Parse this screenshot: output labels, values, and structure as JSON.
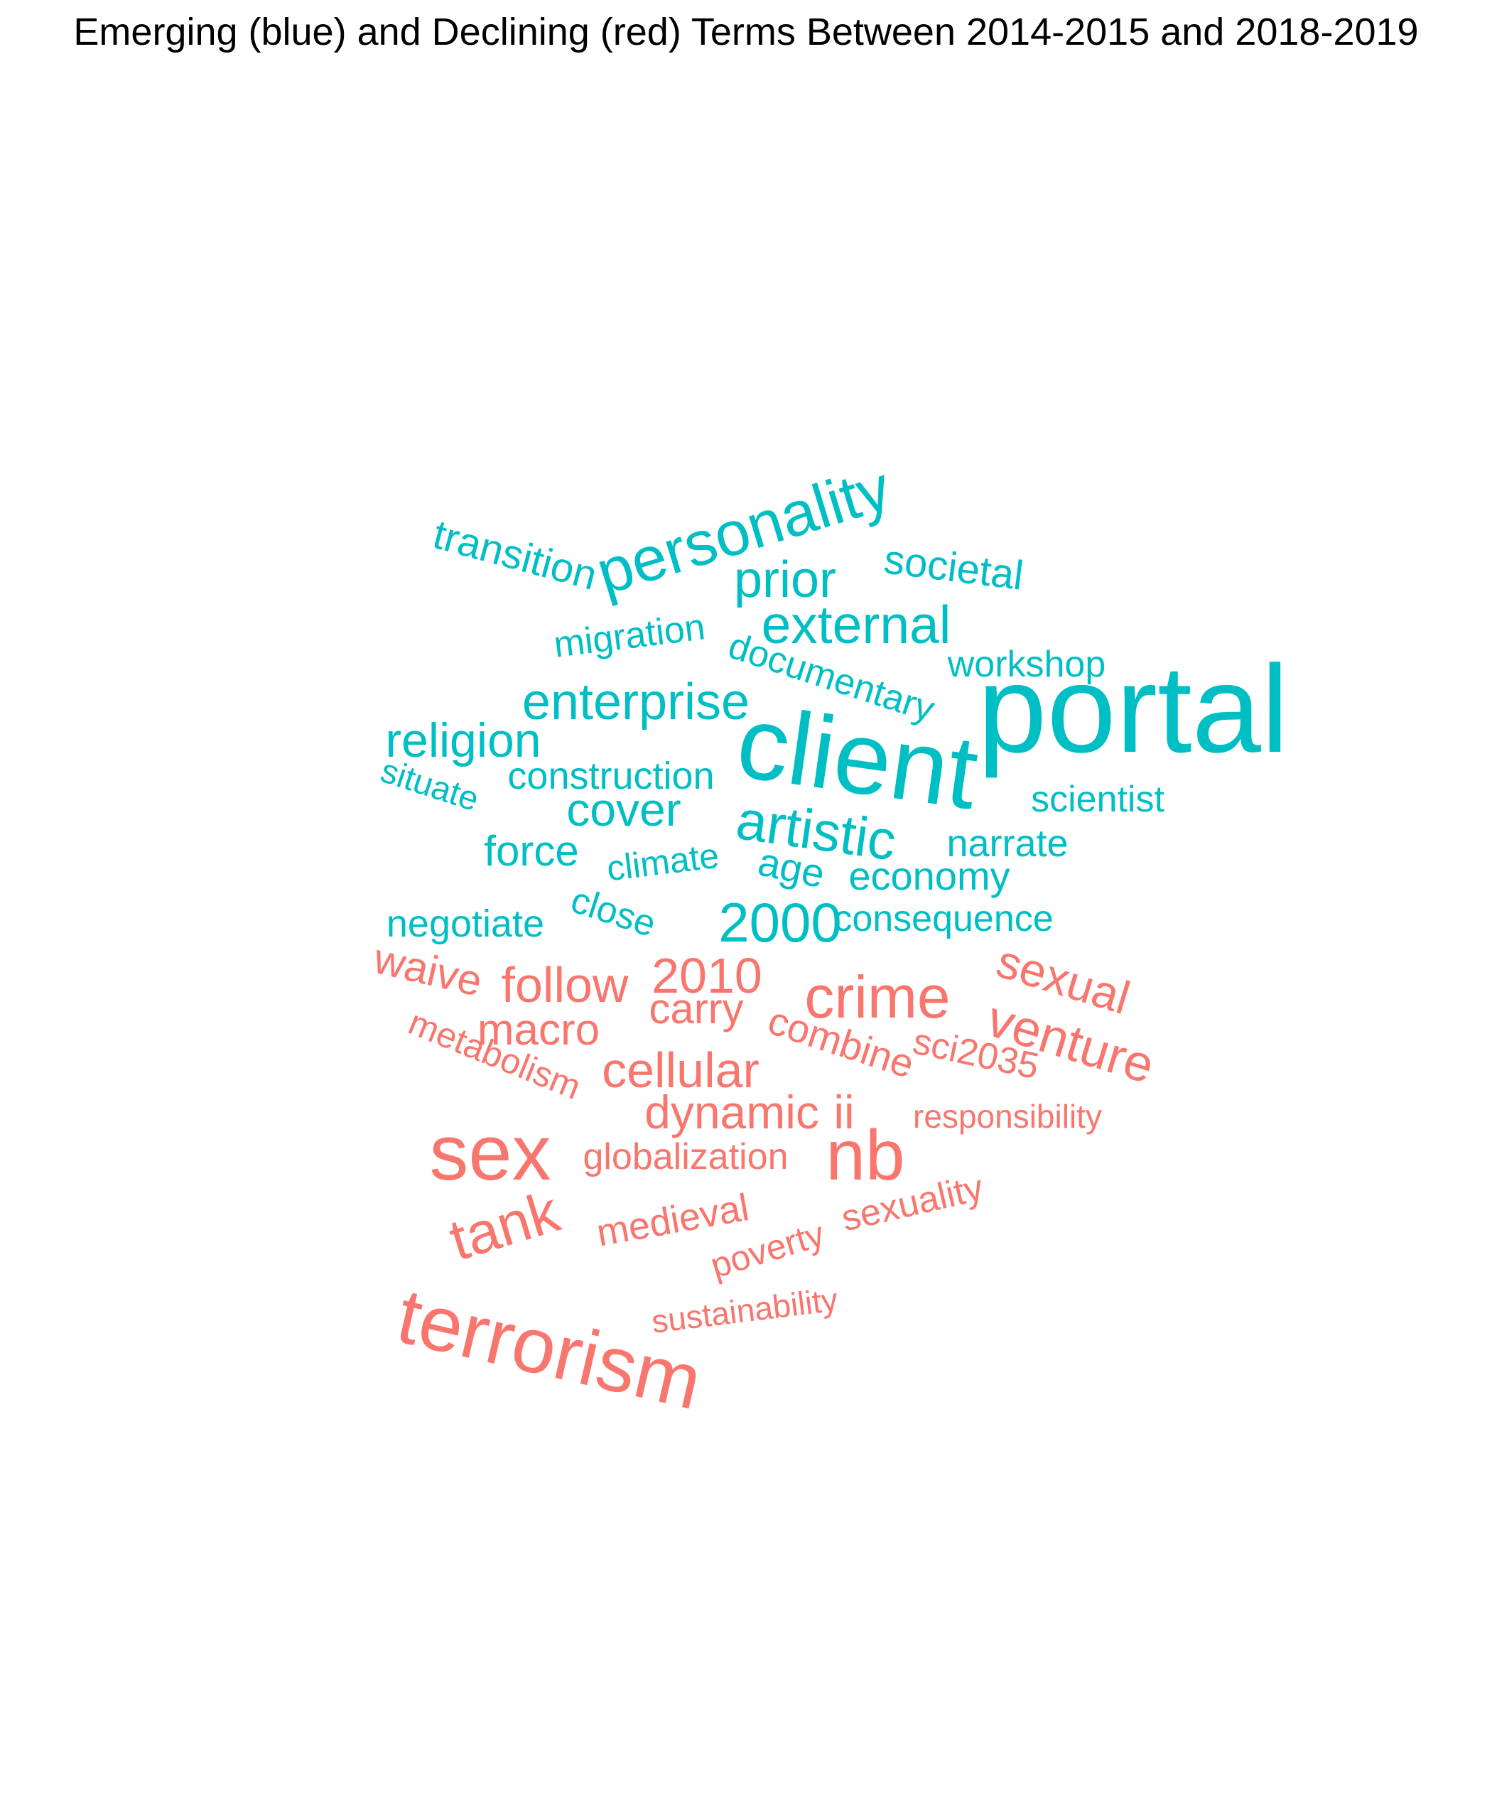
{
  "title": "Emerging (blue) and Declining (red) Terms Between 2014-2015 and 2018-2019",
  "colors": {
    "emerging": "#00BFC4",
    "declining": "#F8766D"
  },
  "emerging_terms": [
    "portal",
    "client",
    "personality",
    "artistic",
    "external",
    "enterprise",
    "prior",
    "religion",
    "cover",
    "2000",
    "transition",
    "societal",
    "migration",
    "documentary",
    "workshop",
    "construction",
    "scientist",
    "situate",
    "force",
    "narrate",
    "climate",
    "age",
    "economy",
    "negotiate",
    "close",
    "consequence"
  ],
  "declining_terms": [
    "terrorism",
    "sex",
    "nb",
    "crime",
    "tank",
    "venture",
    "sexual",
    "cellular",
    "follow",
    "2010",
    "dynamic",
    "ii",
    "macro",
    "waive",
    "carry",
    "combine",
    "sci2035",
    "metabolism",
    "responsibility",
    "globalization",
    "medieval",
    "sexuality",
    "poverty",
    "sustainability"
  ]
}
